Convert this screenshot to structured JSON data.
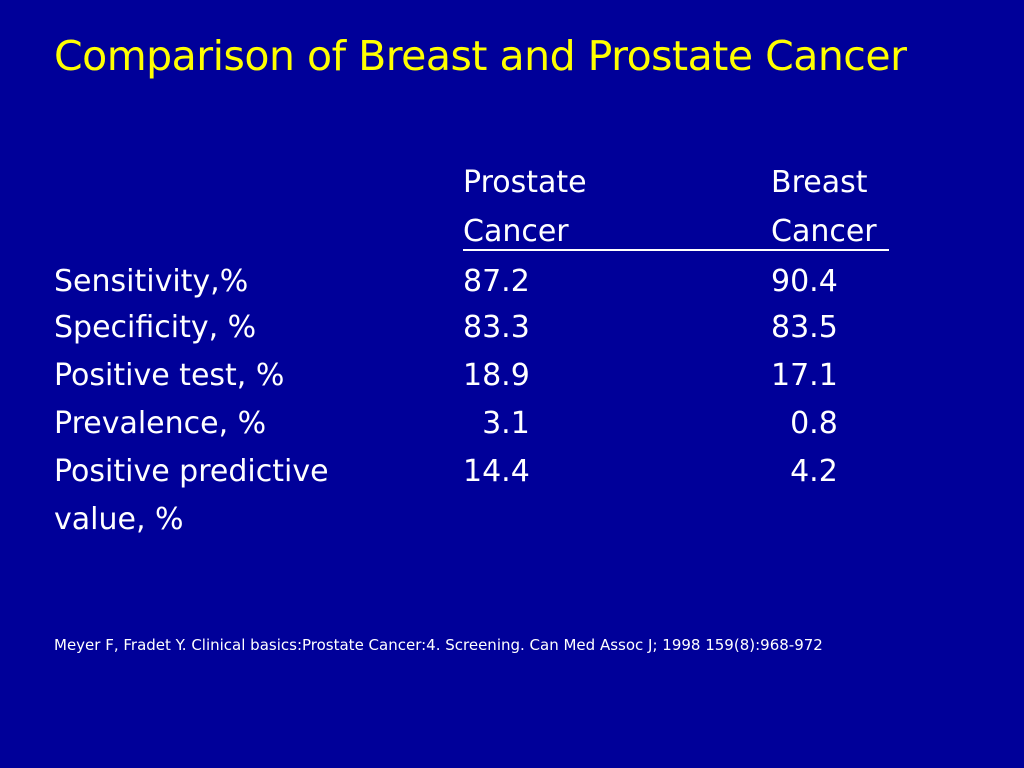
{
  "slide": {
    "title": "Comparison of Breast and Prostate Cancer",
    "title_color": "#ffff00",
    "background_color": "#000099",
    "text_color": "#ffffff"
  },
  "table": {
    "headers": {
      "prostate_line1": "Prostate",
      "prostate_line2": "Cancer",
      "breast_line1": "Breast",
      "breast_line2": "Cancer"
    },
    "rows": [
      {
        "label": "Sensitivity,%",
        "prostate": "87.2",
        "breast": "90.4"
      },
      {
        "label": "Specificity, %",
        "prostate": "83.3",
        "breast": "83.5"
      },
      {
        "label": "Positive test, %",
        "prostate": "18.9",
        "breast": "17.1"
      },
      {
        "label": "Prevalence, %",
        "prostate": "  3.1",
        "breast": "  0.8"
      },
      {
        "label": "Positive predictive",
        "prostate": "14.4",
        "breast": "  4.2"
      }
    ],
    "label_continuation": "value, %"
  },
  "citation": "Meyer F, Fradet Y. Clinical basics:Prostate Cancer:4. Screening. Can Med Assoc J; 1998 159(8):968-972"
}
